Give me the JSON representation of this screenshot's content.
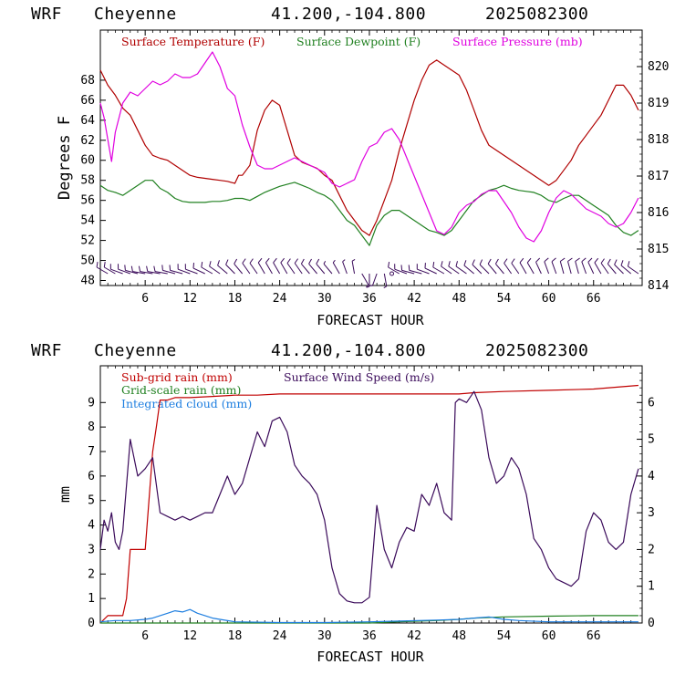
{
  "header": {
    "model": "WRF",
    "location": "Cheyenne",
    "coords": "41.200,-104.800",
    "run": "2025082300"
  },
  "colors": {
    "temperature": "#b00000",
    "dewpoint": "#208020",
    "pressure": "#e000e0",
    "subgrid_rain": "#c00000",
    "gridscale_rain": "#208020",
    "cloud": "#1f7fe0",
    "wind_speed": "#3a0a5a",
    "wind_barb": "#3a0a5a"
  },
  "chart_data": [
    {
      "type": "line",
      "title": "",
      "xlabel": "FORECAST HOUR",
      "ylabel": "Degrees F",
      "y2label": "",
      "xlim": [
        0,
        72.5
      ],
      "ylim": [
        47.5,
        73
      ],
      "y2lim": [
        814,
        821
      ],
      "x_ticks": [
        6,
        12,
        18,
        24,
        30,
        36,
        42,
        48,
        54,
        60,
        66
      ],
      "y_ticks": [
        48,
        50,
        52,
        54,
        56,
        58,
        60,
        62,
        64,
        66,
        68
      ],
      "y2_ticks": [
        814,
        815,
        816,
        817,
        818,
        819,
        820
      ],
      "grid": false,
      "legend_position": "top",
      "series": [
        {
          "name": "Surface Temperature (F)",
          "axis": "left",
          "x": [
            0,
            1,
            2,
            3,
            4,
            5,
            6,
            7,
            8,
            9,
            10,
            11,
            12,
            13,
            14,
            15,
            16,
            17,
            18,
            18.5,
            19,
            20,
            21,
            22,
            23,
            24,
            25,
            26,
            27,
            28,
            29,
            30,
            31,
            32,
            33,
            34,
            35,
            36,
            37,
            38,
            39,
            40,
            41,
            42,
            43,
            44,
            45,
            46,
            47,
            48,
            49,
            50,
            51,
            52,
            53,
            54,
            55,
            56,
            57,
            58,
            59,
            60,
            61,
            62,
            63,
            64,
            65,
            66,
            67,
            68,
            69,
            70,
            71,
            72
          ],
          "values": [
            69,
            67.5,
            66.5,
            65.2,
            64.5,
            63,
            61.5,
            60.5,
            60.2,
            60,
            59.5,
            59,
            58.5,
            58.3,
            58.2,
            58.1,
            58,
            57.9,
            57.7,
            58.5,
            58.5,
            59.5,
            63,
            65,
            66,
            65.5,
            63,
            60.5,
            59.8,
            59.5,
            59.2,
            58.5,
            58,
            56.5,
            55,
            54,
            53,
            52.5,
            54,
            56,
            58,
            61,
            63.5,
            66,
            68,
            69.5,
            70,
            69.5,
            69,
            68.5,
            67,
            65,
            63,
            61.5,
            61,
            60.5,
            60,
            59.5,
            59,
            58.5,
            58,
            57.5,
            58,
            59,
            60,
            61.5,
            62.5,
            63.5,
            64.5,
            66,
            67.5,
            67.5,
            66.5,
            65
          ]
        },
        {
          "name": "Surface Dewpoint (F)",
          "axis": "left",
          "x": [
            0,
            1,
            2,
            3,
            4,
            5,
            6,
            7,
            8,
            9,
            10,
            11,
            12,
            13,
            14,
            15,
            16,
            17,
            18,
            19,
            20,
            21,
            22,
            23,
            24,
            25,
            26,
            27,
            28,
            29,
            30,
            31,
            32,
            33,
            34,
            35,
            36,
            37,
            38,
            39,
            40,
            41,
            42,
            43,
            44,
            45,
            46,
            47,
            48,
            49,
            50,
            51,
            52,
            53,
            54,
            55,
            56,
            57,
            58,
            59,
            60,
            61,
            62,
            63,
            64,
            65,
            66,
            67,
            68,
            69,
            70,
            71,
            72
          ],
          "values": [
            57.5,
            57,
            56.8,
            56.5,
            57,
            57.5,
            58,
            58,
            57.2,
            56.8,
            56.2,
            55.9,
            55.8,
            55.8,
            55.8,
            55.9,
            55.9,
            56,
            56.2,
            56.2,
            56,
            56.4,
            56.8,
            57.1,
            57.4,
            57.6,
            57.8,
            57.5,
            57.2,
            56.8,
            56.5,
            56,
            55,
            54,
            53.5,
            52.5,
            51.5,
            53.5,
            54.5,
            55,
            55,
            54.5,
            54,
            53.5,
            53,
            52.8,
            52.5,
            53,
            54,
            55,
            56,
            56.5,
            57,
            57.2,
            57.5,
            57.2,
            57,
            56.9,
            56.8,
            56.5,
            56,
            55.8,
            56.2,
            56.5,
            56.5,
            56,
            55.5,
            55,
            54.5,
            53.5,
            52.8,
            52.5,
            53
          ]
        },
        {
          "name": "Surface Pressure (mb)",
          "axis": "right",
          "x": [
            0,
            0.5,
            1,
            1.5,
            2,
            3,
            4,
            5,
            6,
            7,
            8,
            9,
            10,
            11,
            12,
            13,
            14,
            15,
            16,
            17,
            18,
            19,
            20,
            21,
            22,
            23,
            24,
            25,
            26,
            27,
            28,
            29,
            30,
            31,
            32,
            33,
            34,
            35,
            36,
            37,
            38,
            39,
            40,
            41,
            42,
            43,
            44,
            45,
            46,
            47,
            48,
            49,
            50,
            51,
            52,
            53,
            54,
            55,
            56,
            57,
            58,
            59,
            60,
            61,
            62,
            63,
            64,
            65,
            66,
            67,
            68,
            69,
            70,
            71,
            72
          ],
          "values": [
            819,
            818.6,
            818,
            817.4,
            818.2,
            819,
            819.3,
            819.2,
            819.4,
            819.6,
            819.5,
            819.6,
            819.8,
            819.7,
            819.7,
            819.8,
            820.1,
            820.4,
            820,
            819.4,
            819.2,
            818.4,
            817.8,
            817.3,
            817.2,
            817.2,
            817.3,
            817.4,
            817.5,
            817.4,
            817.3,
            817.2,
            817.1,
            816.8,
            816.7,
            816.8,
            816.9,
            817.4,
            817.8,
            817.9,
            818.2,
            818.3,
            818.0,
            817.5,
            817.0,
            816.5,
            816.0,
            815.5,
            815.4,
            815.6,
            816.0,
            816.2,
            816.3,
            816.5,
            816.6,
            816.6,
            816.3,
            816.0,
            815.6,
            815.3,
            815.2,
            815.5,
            816,
            816.4,
            816.6,
            816.5,
            816.3,
            816.1,
            816.0,
            815.9,
            815.7,
            815.6,
            815.7,
            816,
            816.4
          ]
        }
      ],
      "wind_barbs": {
        "x": [
          1,
          2,
          3,
          4,
          5,
          6,
          7,
          8,
          9,
          10,
          11,
          12,
          13,
          14,
          15,
          16,
          17,
          18,
          19,
          20,
          21,
          22,
          23,
          24,
          25,
          26,
          27,
          28,
          29,
          30,
          31,
          32,
          33,
          34,
          35,
          36,
          37,
          38,
          39,
          40,
          41,
          42,
          43,
          44,
          45,
          46,
          47,
          48,
          49,
          50,
          51,
          52,
          53,
          54,
          55,
          56,
          57,
          58,
          59,
          60,
          61,
          62,
          63,
          64,
          65,
          66,
          67,
          68,
          69,
          70,
          71,
          72
        ],
        "direction_deg": [
          300,
          300,
          290,
          290,
          285,
          280,
          280,
          280,
          280,
          285,
          285,
          290,
          290,
          295,
          300,
          305,
          310,
          315,
          320,
          325,
          325,
          330,
          330,
          330,
          330,
          325,
          325,
          320,
          320,
          320,
          320,
          330,
          340,
          350,
          150,
          180,
          200,
          170,
          0,
          300,
          290,
          285,
          285,
          290,
          295,
          300,
          305,
          305,
          305,
          310,
          315,
          315,
          320,
          320,
          325,
          325,
          330,
          330,
          335,
          340,
          340,
          345,
          345,
          345,
          340,
          335,
          330,
          325,
          320,
          315,
          310,
          305
        ],
        "speed_kt": [
          10,
          10,
          10,
          10,
          10,
          10,
          10,
          10,
          10,
          10,
          10,
          10,
          10,
          10,
          10,
          10,
          10,
          10,
          10,
          10,
          10,
          10,
          10,
          10,
          10,
          10,
          10,
          10,
          10,
          10,
          5,
          5,
          5,
          5,
          5,
          5,
          5,
          5,
          0,
          10,
          10,
          10,
          10,
          10,
          10,
          10,
          10,
          10,
          10,
          10,
          10,
          10,
          10,
          10,
          10,
          10,
          10,
          10,
          10,
          10,
          10,
          10,
          10,
          10,
          10,
          10,
          10,
          10,
          10,
          10,
          10,
          10
        ]
      }
    },
    {
      "type": "line",
      "title": "",
      "xlabel": "FORECAST HOUR",
      "ylabel": "mm",
      "xlim": [
        0,
        72.5
      ],
      "ylim": [
        0,
        10.5
      ],
      "y2lim": [
        0,
        7
      ],
      "x_ticks": [
        6,
        12,
        18,
        24,
        30,
        36,
        42,
        48,
        54,
        60,
        66
      ],
      "y_ticks": [
        0,
        1,
        2,
        3,
        4,
        5,
        6,
        7,
        8,
        9
      ],
      "y2_ticks": [
        0,
        1,
        2,
        3,
        4,
        5,
        6
      ],
      "grid": false,
      "legend_position": "top",
      "series": [
        {
          "name": "Sub-grid rain (mm)",
          "axis": "left",
          "x": [
            0,
            1,
            2,
            3,
            3.5,
            4,
            5,
            6,
            6.5,
            7,
            7.5,
            8,
            9,
            10,
            12,
            15,
            18,
            21,
            24,
            30,
            36,
            42,
            48,
            50,
            54,
            60,
            66,
            72
          ],
          "values": [
            0,
            0.3,
            0.3,
            0.3,
            1,
            3,
            3,
            3,
            5,
            7,
            8,
            9.1,
            9.1,
            9.2,
            9.2,
            9.25,
            9.3,
            9.3,
            9.35,
            9.35,
            9.35,
            9.35,
            9.35,
            9.4,
            9.45,
            9.5,
            9.55,
            9.7
          ]
        },
        {
          "name": "Grid-scale rain (mm)",
          "axis": "left",
          "x": [
            0,
            30,
            36,
            40,
            45,
            48,
            50,
            54,
            60,
            66,
            72
          ],
          "values": [
            0,
            0,
            0,
            0.05,
            0.1,
            0.15,
            0.2,
            0.25,
            0.28,
            0.3,
            0.3
          ]
        },
        {
          "name": "Integrated cloud (mm)",
          "axis": "left",
          "x": [
            0,
            2,
            4,
            6,
            7,
            8,
            9,
            10,
            11,
            12,
            13,
            14,
            15,
            16,
            18,
            24,
            30,
            36,
            40,
            45,
            48,
            50,
            52,
            54,
            56,
            60,
            66,
            72
          ],
          "values": [
            0.05,
            0.1,
            0.1,
            0.15,
            0.2,
            0.3,
            0.4,
            0.5,
            0.45,
            0.55,
            0.4,
            0.3,
            0.2,
            0.15,
            0.05,
            0.02,
            0.02,
            0.05,
            0.08,
            0.12,
            0.15,
            0.2,
            0.25,
            0.15,
            0.1,
            0.05,
            0.05,
            0.05
          ]
        },
        {
          "name": "Surface Wind Speed (m/s)",
          "axis": "right",
          "x": [
            0,
            0.5,
            1,
            1.5,
            2,
            2.5,
            3,
            4,
            5,
            6,
            7,
            8,
            9,
            10,
            11,
            12,
            13,
            14,
            15,
            16,
            17,
            18,
            19,
            20,
            21,
            22,
            23,
            24,
            25,
            26,
            27,
            28,
            29,
            30,
            31,
            32,
            33,
            34,
            35,
            36,
            37,
            38,
            39,
            40,
            41,
            42,
            43,
            44,
            45,
            46,
            47,
            47.5,
            48,
            49,
            50,
            51,
            52,
            53,
            54,
            55,
            56,
            57,
            58,
            59,
            60,
            61,
            62,
            63,
            64,
            65,
            66,
            67,
            68,
            69,
            70,
            71,
            72
          ],
          "values": [
            2.0,
            2.8,
            2.5,
            3.0,
            2.2,
            2.0,
            2.5,
            5.0,
            4.0,
            4.2,
            4.5,
            3.0,
            2.9,
            2.8,
            2.9,
            2.8,
            2.9,
            3.0,
            3.0,
            3.5,
            4.0,
            3.5,
            3.8,
            4.5,
            5.2,
            4.8,
            5.5,
            5.6,
            5.2,
            4.3,
            4.0,
            3.8,
            3.5,
            2.8,
            1.5,
            0.8,
            0.6,
            0.55,
            0.55,
            0.7,
            3.2,
            2.0,
            1.5,
            2.2,
            2.6,
            2.5,
            3.5,
            3.2,
            3.8,
            3.0,
            2.8,
            6.0,
            6.1,
            6.0,
            6.3,
            5.8,
            4.5,
            3.8,
            4.0,
            4.5,
            4.2,
            3.5,
            2.3,
            2.0,
            1.5,
            1.2,
            1.1,
            1.0,
            1.2,
            2.5,
            3.0,
            2.8,
            2.2,
            2.0,
            2.2,
            3.5,
            4.2
          ]
        }
      ]
    }
  ]
}
